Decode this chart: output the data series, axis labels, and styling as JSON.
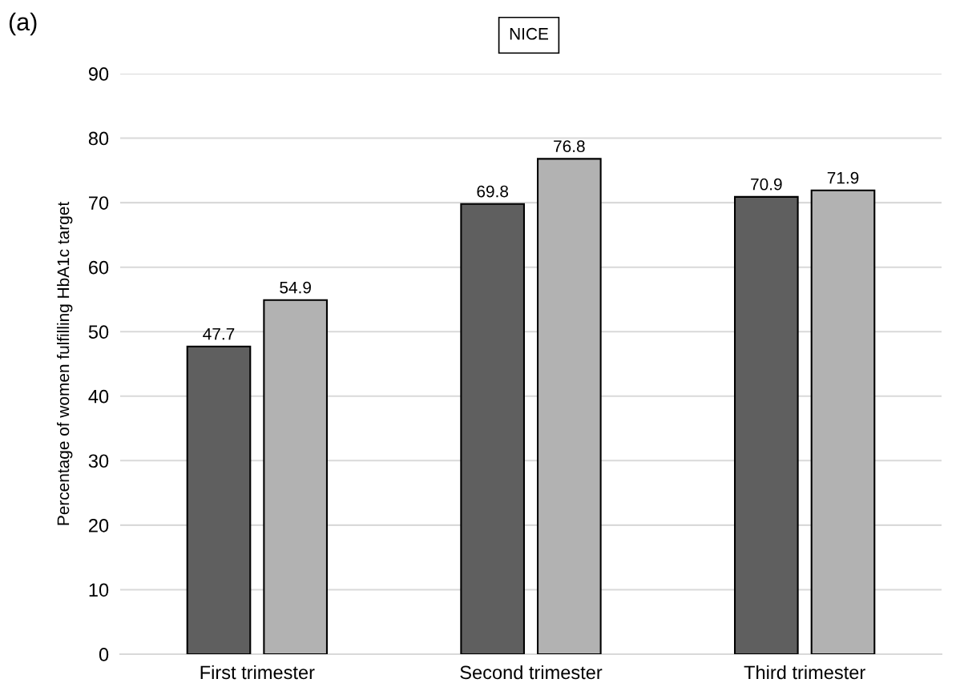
{
  "chart_data": {
    "type": "bar",
    "title": "NICE",
    "ylabel": "Percentage of women fulfilling HbA1c target",
    "annotations": [
      "(a)"
    ],
    "categories": [
      "First trimester",
      "Second trimester",
      "Third trimester"
    ],
    "series": [
      {
        "color": "#5f5f5f",
        "values": [
          47.7,
          69.8,
          70.9
        ]
      },
      {
        "color": "#b2b2b2",
        "values": [
          54.9,
          76.8,
          71.9
        ]
      }
    ],
    "ylim": [
      0,
      90
    ],
    "yticks": [
      0,
      10,
      20,
      30,
      40,
      50,
      60,
      70,
      80,
      90
    ],
    "grid": "y",
    "data_labels": true
  }
}
